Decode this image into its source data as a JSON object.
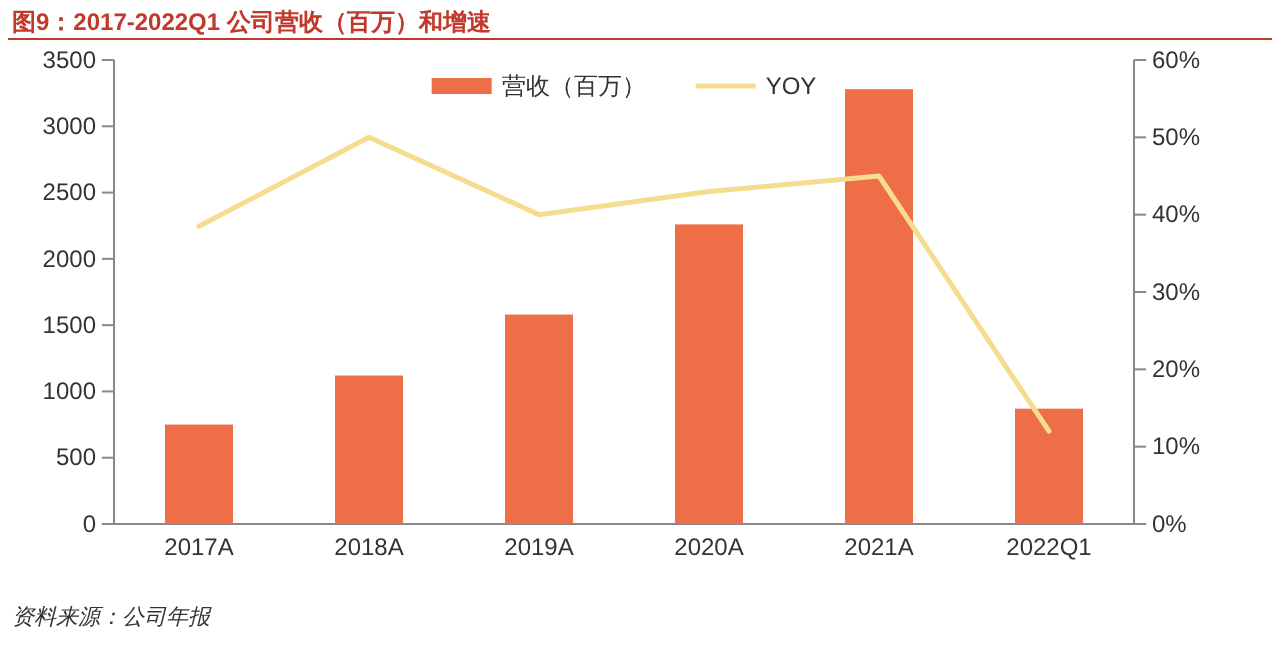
{
  "chart_data": {
    "type": "bar",
    "title": "图9：2017-2022Q1 公司营收（百万）和增速",
    "categories": [
      "2017A",
      "2018A",
      "2019A",
      "2020A",
      "2021A",
      "2022Q1"
    ],
    "series": [
      {
        "name": "营收（百万）",
        "color": "#ed6e47",
        "values": [
          750,
          1120,
          1580,
          2260,
          3280,
          870
        ]
      },
      {
        "name": "YOY",
        "type": "line",
        "axis": "y2",
        "color": "#f5dc8f",
        "values": [
          38.5,
          50,
          40,
          43,
          45,
          12
        ]
      }
    ],
    "ylim": [
      0,
      3500
    ],
    "yticks": [
      0,
      500,
      1000,
      1500,
      2000,
      2500,
      3000,
      3500
    ],
    "y2lim": [
      0,
      60
    ],
    "y2ticks": [
      {
        "value": 0,
        "label": "0%"
      },
      {
        "value": 10,
        "label": "10%"
      },
      {
        "value": 20,
        "label": "20%"
      },
      {
        "value": 30,
        "label": "30%"
      },
      {
        "value": 40,
        "label": "40%"
      },
      {
        "value": 50,
        "label": "50%"
      },
      {
        "value": 60,
        "label": "60%"
      }
    ],
    "legend": "top",
    "marker": "none",
    "annotations": [
      "资料来源：公司年报"
    ]
  }
}
